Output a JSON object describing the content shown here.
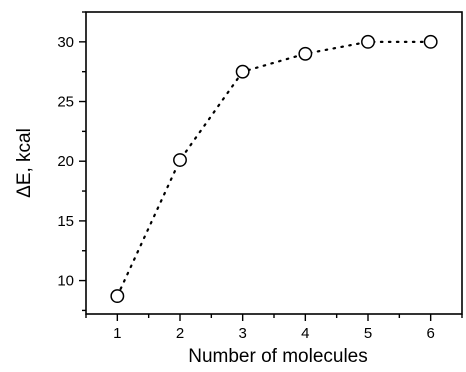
{
  "chart_data": {
    "type": "scatter",
    "title": "",
    "xlabel": "Number of molecules",
    "ylabel": "ΔE, kcal",
    "xlim": [
      0.5,
      6.5
    ],
    "ylim": [
      7.2,
      32.5
    ],
    "xticks": [
      1,
      2,
      3,
      4,
      5,
      6
    ],
    "yticks": [
      10,
      15,
      20,
      25,
      30
    ],
    "line_style": "dotted",
    "marker": "open-circle",
    "grid": false,
    "legend": "none",
    "series": [
      {
        "x": [
          1,
          2,
          3,
          4,
          5,
          6
        ],
        "y": [
          8.7,
          20.1,
          27.5,
          29.0,
          30.0,
          30.0
        ]
      }
    ]
  }
}
